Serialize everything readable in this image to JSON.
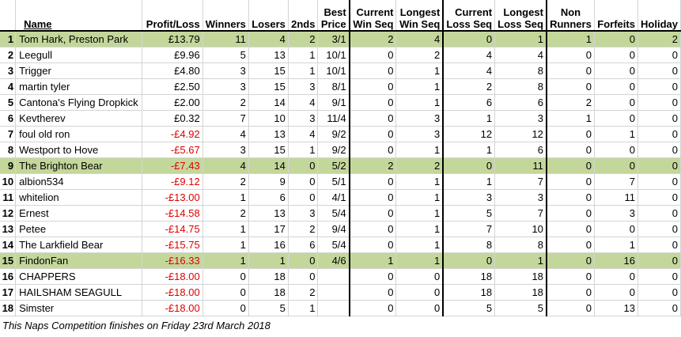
{
  "headers": {
    "name": "Name",
    "profit_loss": "Profit/Loss",
    "winners": "Winners",
    "losers": "Losers",
    "seconds": "2nds",
    "best_price_1": "Best",
    "best_price_2": "Price",
    "current_win_1": "Current",
    "current_win_2": "Win Seq",
    "longest_win_1": "Longest",
    "longest_win_2": "Win Seq",
    "current_loss_1": "Current",
    "current_loss_2": "Loss Seq",
    "longest_loss_1": "Longest",
    "longest_loss_2": "Loss Seq",
    "non_runners_1": "Non",
    "non_runners_2": "Runners",
    "forfeits": "Forfeits",
    "holiday": "Holiday"
  },
  "rows": [
    {
      "idx": "1",
      "name": "Tom Hark, Preston Park",
      "pl": "£13.79",
      "neg": false,
      "w": "11",
      "l": "4",
      "s": "2",
      "bp": "3/1",
      "cws": "2",
      "lws": "4",
      "cls": "0",
      "lls": "1",
      "nr": "1",
      "f": "0",
      "h": "2",
      "hl": true
    },
    {
      "idx": "2",
      "name": "Leegull",
      "pl": "£9.96",
      "neg": false,
      "w": "5",
      "l": "13",
      "s": "1",
      "bp": "10/1",
      "cws": "0",
      "lws": "2",
      "cls": "4",
      "lls": "4",
      "nr": "0",
      "f": "0",
      "h": "0",
      "hl": false
    },
    {
      "idx": "3",
      "name": "Trigger",
      "pl": "£4.80",
      "neg": false,
      "w": "3",
      "l": "15",
      "s": "1",
      "bp": "10/1",
      "cws": "0",
      "lws": "1",
      "cls": "4",
      "lls": "8",
      "nr": "0",
      "f": "0",
      "h": "0",
      "hl": false
    },
    {
      "idx": "4",
      "name": "martin tyler",
      "pl": "£2.50",
      "neg": false,
      "w": "3",
      "l": "15",
      "s": "3",
      "bp": "8/1",
      "cws": "0",
      "lws": "1",
      "cls": "2",
      "lls": "8",
      "nr": "0",
      "f": "0",
      "h": "0",
      "hl": false
    },
    {
      "idx": "5",
      "name": "Cantona's Flying Dropkick",
      "pl": "£2.00",
      "neg": false,
      "w": "2",
      "l": "14",
      "s": "4",
      "bp": "9/1",
      "cws": "0",
      "lws": "1",
      "cls": "6",
      "lls": "6",
      "nr": "2",
      "f": "0",
      "h": "0",
      "hl": false
    },
    {
      "idx": "6",
      "name": "Kevtherev",
      "pl": "£0.32",
      "neg": false,
      "w": "7",
      "l": "10",
      "s": "3",
      "bp": "11/4",
      "cws": "0",
      "lws": "3",
      "cls": "1",
      "lls": "3",
      "nr": "1",
      "f": "0",
      "h": "0",
      "hl": false
    },
    {
      "idx": "7",
      "name": "foul old ron",
      "pl": "-£4.92",
      "neg": true,
      "w": "4",
      "l": "13",
      "s": "4",
      "bp": "9/2",
      "cws": "0",
      "lws": "3",
      "cls": "12",
      "lls": "12",
      "nr": "0",
      "f": "1",
      "h": "0",
      "hl": false
    },
    {
      "idx": "8",
      "name": "Westport to Hove",
      "pl": "-£5.67",
      "neg": true,
      "w": "3",
      "l": "15",
      "s": "1",
      "bp": "9/2",
      "cws": "0",
      "lws": "1",
      "cls": "1",
      "lls": "6",
      "nr": "0",
      "f": "0",
      "h": "0",
      "hl": false
    },
    {
      "idx": "9",
      "name": "The Brighton Bear",
      "pl": "-£7.43",
      "neg": true,
      "w": "4",
      "l": "14",
      "s": "0",
      "bp": "5/2",
      "cws": "2",
      "lws": "2",
      "cls": "0",
      "lls": "11",
      "nr": "0",
      "f": "0",
      "h": "0",
      "hl": true
    },
    {
      "idx": "10",
      "name": "albion534",
      "pl": "-£9.12",
      "neg": true,
      "w": "2",
      "l": "9",
      "s": "0",
      "bp": "5/1",
      "cws": "0",
      "lws": "1",
      "cls": "1",
      "lls": "7",
      "nr": "0",
      "f": "7",
      "h": "0",
      "hl": false
    },
    {
      "idx": "11",
      "name": "whitelion",
      "pl": "-£13.00",
      "neg": true,
      "w": "1",
      "l": "6",
      "s": "0",
      "bp": "4/1",
      "cws": "0",
      "lws": "1",
      "cls": "3",
      "lls": "3",
      "nr": "0",
      "f": "11",
      "h": "0",
      "hl": false
    },
    {
      "idx": "12",
      "name": "Ernest",
      "pl": "-£14.58",
      "neg": true,
      "w": "2",
      "l": "13",
      "s": "3",
      "bp": "5/4",
      "cws": "0",
      "lws": "1",
      "cls": "5",
      "lls": "7",
      "nr": "0",
      "f": "3",
      "h": "0",
      "hl": false
    },
    {
      "idx": "13",
      "name": "Petee",
      "pl": "-£14.75",
      "neg": true,
      "w": "1",
      "l": "17",
      "s": "2",
      "bp": "9/4",
      "cws": "0",
      "lws": "1",
      "cls": "7",
      "lls": "10",
      "nr": "0",
      "f": "0",
      "h": "0",
      "hl": false
    },
    {
      "idx": "14",
      "name": "The Larkfield Bear",
      "pl": "-£15.75",
      "neg": true,
      "w": "1",
      "l": "16",
      "s": "6",
      "bp": "5/4",
      "cws": "0",
      "lws": "1",
      "cls": "8",
      "lls": "8",
      "nr": "0",
      "f": "1",
      "h": "0",
      "hl": false
    },
    {
      "idx": "15",
      "name": "FindonFan",
      "pl": "-£16.33",
      "neg": true,
      "w": "1",
      "l": "1",
      "s": "0",
      "bp": "4/6",
      "cws": "1",
      "lws": "1",
      "cls": "0",
      "lls": "1",
      "nr": "0",
      "f": "16",
      "h": "0",
      "hl": true
    },
    {
      "idx": "16",
      "name": "CHAPPERS",
      "pl": "-£18.00",
      "neg": true,
      "w": "0",
      "l": "18",
      "s": "0",
      "bp": "",
      "cws": "0",
      "lws": "0",
      "cls": "18",
      "lls": "18",
      "nr": "0",
      "f": "0",
      "h": "0",
      "hl": false
    },
    {
      "idx": "17",
      "name": "HAILSHAM SEAGULL",
      "pl": "-£18.00",
      "neg": true,
      "w": "0",
      "l": "18",
      "s": "2",
      "bp": "",
      "cws": "0",
      "lws": "0",
      "cls": "18",
      "lls": "18",
      "nr": "0",
      "f": "0",
      "h": "0",
      "hl": false
    },
    {
      "idx": "18",
      "name": "Simster",
      "pl": "-£18.00",
      "neg": true,
      "w": "0",
      "l": "5",
      "s": "1",
      "bp": "",
      "cws": "0",
      "lws": "0",
      "cls": "5",
      "lls": "5",
      "nr": "0",
      "f": "13",
      "h": "0",
      "hl": false
    }
  ],
  "footer": "This Naps Competition finishes on Friday 23rd March 2018",
  "colors": {
    "highlight": "#c4d79b",
    "negative": "#e00000"
  }
}
